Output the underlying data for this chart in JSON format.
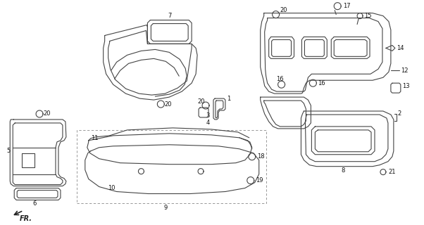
{
  "bg_color": "#ffffff",
  "line_color": "#444444",
  "label_color": "#111111",
  "lw": 0.8
}
